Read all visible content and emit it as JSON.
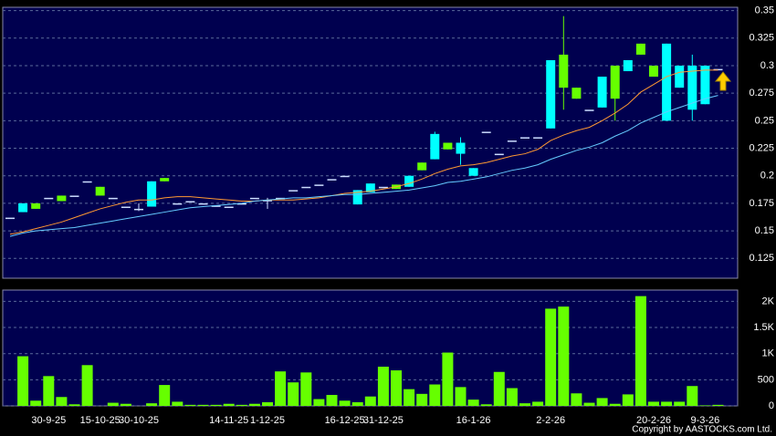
{
  "chart_data": [
    {
      "type": "candlestick",
      "open": [
        0.162,
        0.175,
        0.17,
        0.18,
        0.177,
        0.182,
        0.195,
        0.182,
        0.18,
        0.172,
        0.17,
        0.195,
        0.195,
        0.175,
        0.177,
        0.175,
        0.173,
        0.172,
        0.175,
        0.18,
        0.178,
        0.18,
        0.187,
        0.19,
        0.192,
        0.197,
        0.2,
        0.187,
        0.193,
        0.19,
        0.188,
        0.2,
        0.205,
        0.238,
        0.224,
        0.23,
        0.207,
        0.24,
        0.22,
        0.232,
        0.235,
        0.235,
        0.305,
        0.28,
        0.27,
        0.26,
        0.29,
        0.27,
        0.305,
        0.31,
        0.29,
        0.32,
        0.3,
        0.3,
        0.3,
        0.297
      ],
      "high": [
        0.162,
        0.175,
        0.175,
        0.18,
        0.182,
        0.182,
        0.195,
        0.19,
        0.18,
        0.172,
        0.175,
        0.195,
        0.198,
        0.175,
        0.177,
        0.175,
        0.173,
        0.172,
        0.175,
        0.18,
        0.18,
        0.18,
        0.187,
        0.19,
        0.192,
        0.197,
        0.2,
        0.187,
        0.193,
        0.19,
        0.192,
        0.2,
        0.212,
        0.24,
        0.23,
        0.235,
        0.207,
        0.24,
        0.22,
        0.232,
        0.235,
        0.235,
        0.305,
        0.345,
        0.28,
        0.26,
        0.29,
        0.3,
        0.305,
        0.32,
        0.3,
        0.32,
        0.3,
        0.31,
        0.3,
        0.297
      ],
      "low": [
        0.162,
        0.167,
        0.17,
        0.18,
        0.177,
        0.182,
        0.195,
        0.182,
        0.18,
        0.172,
        0.168,
        0.172,
        0.195,
        0.175,
        0.177,
        0.175,
        0.173,
        0.172,
        0.175,
        0.18,
        0.17,
        0.18,
        0.187,
        0.19,
        0.192,
        0.197,
        0.2,
        0.174,
        0.185,
        0.19,
        0.188,
        0.19,
        0.205,
        0.215,
        0.224,
        0.21,
        0.2,
        0.24,
        0.22,
        0.232,
        0.235,
        0.235,
        0.243,
        0.26,
        0.27,
        0.26,
        0.262,
        0.25,
        0.295,
        0.31,
        0.29,
        0.25,
        0.28,
        0.25,
        0.265,
        0.297
      ],
      "close": [
        0.162,
        0.167,
        0.175,
        0.18,
        0.182,
        0.182,
        0.195,
        0.19,
        0.18,
        0.172,
        0.17,
        0.172,
        0.198,
        0.175,
        0.177,
        0.175,
        0.173,
        0.172,
        0.175,
        0.18,
        0.178,
        0.18,
        0.187,
        0.19,
        0.192,
        0.197,
        0.2,
        0.174,
        0.185,
        0.19,
        0.192,
        0.19,
        0.212,
        0.215,
        0.23,
        0.22,
        0.2,
        0.24,
        0.22,
        0.232,
        0.235,
        0.235,
        0.243,
        0.31,
        0.28,
        0.26,
        0.262,
        0.3,
        0.295,
        0.32,
        0.3,
        0.25,
        0.28,
        0.26,
        0.265,
        0.297
      ],
      "up_color": "#66ff00",
      "down_color": "#00ffff",
      "flat_color": "#ccddff",
      "series": [
        {
          "color": "#ff9933",
          "values": [
            0.147,
            0.149,
            0.152,
            0.155,
            0.158,
            0.162,
            0.166,
            0.17,
            0.173,
            0.176,
            0.178,
            0.178,
            0.18,
            0.181,
            0.181,
            0.18,
            0.179,
            0.178,
            0.177,
            0.177,
            0.178,
            0.178,
            0.178,
            0.179,
            0.18,
            0.182,
            0.184,
            0.185,
            0.186,
            0.188,
            0.19,
            0.193,
            0.197,
            0.202,
            0.206,
            0.209,
            0.21,
            0.212,
            0.215,
            0.218,
            0.22,
            0.224,
            0.232,
            0.237,
            0.241,
            0.244,
            0.25,
            0.257,
            0.265,
            0.276,
            0.283,
            0.29,
            0.294,
            0.295,
            0.296,
            0.296
          ]
        },
        {
          "color": "#66ccff",
          "values": [
            0.145,
            0.148,
            0.15,
            0.151,
            0.152,
            0.153,
            0.155,
            0.157,
            0.159,
            0.161,
            0.163,
            0.165,
            0.167,
            0.169,
            0.171,
            0.172,
            0.173,
            0.174,
            0.175,
            0.177,
            0.178,
            0.179,
            0.18,
            0.18,
            0.181,
            0.182,
            0.183,
            0.183,
            0.184,
            0.185,
            0.186,
            0.187,
            0.189,
            0.191,
            0.194,
            0.195,
            0.197,
            0.199,
            0.202,
            0.205,
            0.207,
            0.21,
            0.215,
            0.219,
            0.223,
            0.226,
            0.23,
            0.236,
            0.241,
            0.248,
            0.253,
            0.258,
            0.262,
            0.266,
            0.27,
            0.273
          ]
        }
      ],
      "ylim": [
        0.107,
        0.353
      ],
      "yticks": [
        0.125,
        0.15,
        0.175,
        0.2,
        0.225,
        0.25,
        0.275,
        0.3,
        0.325,
        0.35
      ],
      "grid": true
    },
    {
      "type": "bar",
      "categories": [
        null,
        null,
        null,
        "30-9-25",
        null,
        null,
        null,
        "15-10-25",
        null,
        null,
        "30-10-25",
        null,
        null,
        null,
        null,
        null,
        null,
        "14-11-25",
        null,
        null,
        "1-12-25",
        null,
        null,
        null,
        null,
        null,
        "16-12-25",
        null,
        null,
        "31-12-25",
        null,
        null,
        null,
        null,
        null,
        null,
        "16-1-26",
        null,
        null,
        null,
        null,
        null,
        "2-2-26",
        null,
        null,
        null,
        null,
        null,
        null,
        null,
        "20-2-26",
        null,
        null,
        null,
        "9-3-26",
        null
      ],
      "values": [
        0,
        950,
        100,
        570,
        170,
        30,
        780,
        0,
        60,
        40,
        0,
        50,
        400,
        80,
        20,
        20,
        20,
        40,
        20,
        40,
        70,
        660,
        450,
        640,
        130,
        210,
        100,
        70,
        180,
        750,
        680,
        320,
        230,
        410,
        1020,
        360,
        120,
        30,
        650,
        340,
        50,
        80,
        1860,
        1900,
        240,
        60,
        150,
        40,
        220,
        2100,
        80,
        80,
        80,
        380,
        10,
        20
      ],
      "color": "#66ff00",
      "ylim": [
        0,
        2216
      ],
      "yticks": [
        0,
        500,
        {
          "value": 1000,
          "label": "1K"
        },
        {
          "value": 1500,
          "label": "1.5K"
        },
        {
          "value": 2000,
          "label": "2K"
        }
      ],
      "grid": true,
      "source": "Copyright by AASTOCKS.com Ltd."
    }
  ]
}
